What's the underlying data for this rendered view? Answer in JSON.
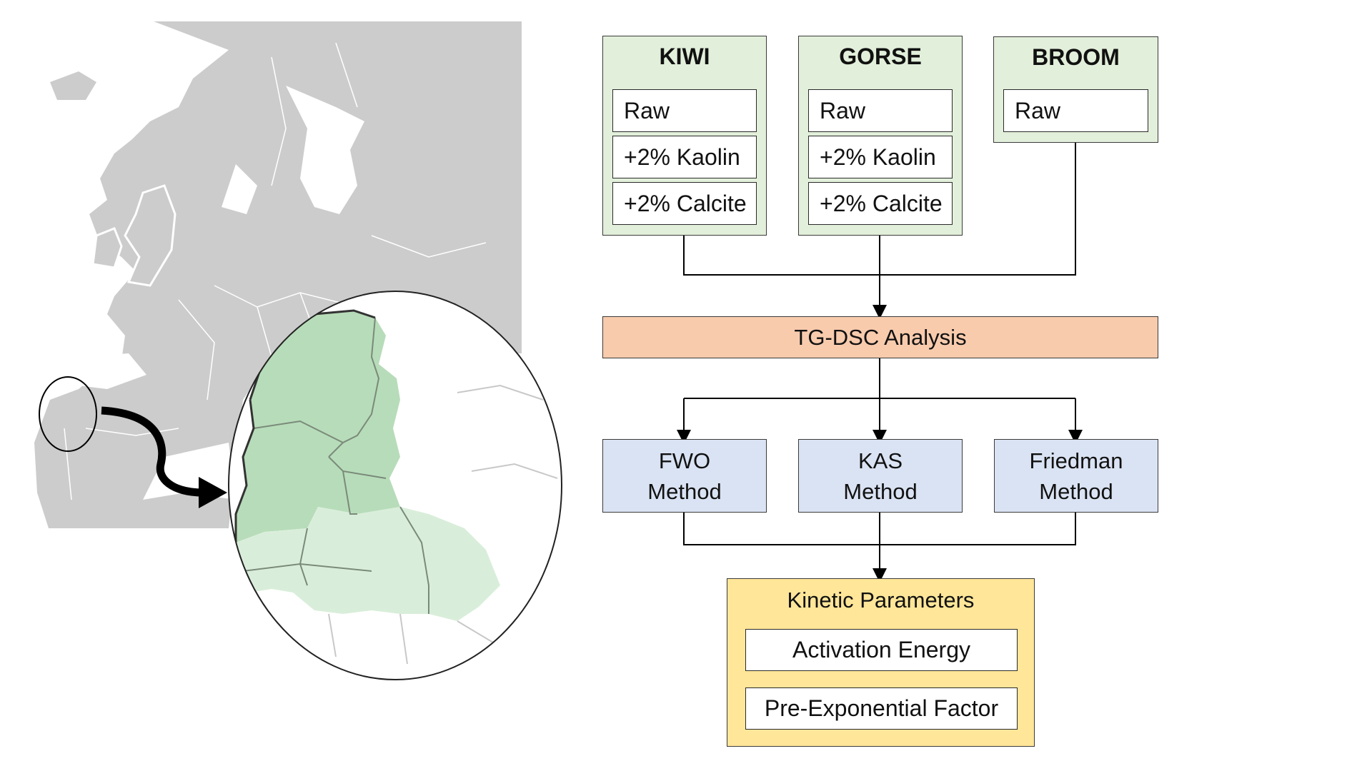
{
  "groups": [
    {
      "title": "KIWI",
      "items": [
        "Raw",
        "+2% Kaolin",
        "+2% Calcite"
      ]
    },
    {
      "title": "GORSE",
      "items": [
        "Raw",
        "+2% Kaolin",
        "+2% Calcite"
      ]
    },
    {
      "title": "BROOM",
      "items": [
        "Raw"
      ]
    }
  ],
  "analysis": "TG-DSC Analysis",
  "methods": [
    {
      "line1": "FWO",
      "line2": "Method"
    },
    {
      "line1": "KAS",
      "line2": "Method"
    },
    {
      "line1": "Friedman",
      "line2": "Method"
    }
  ],
  "kinetic": {
    "title": "Kinetic Parameters",
    "items": [
      "Activation Energy",
      "Pre-Exponential Factor"
    ]
  },
  "colors": {
    "group_fill": "#e2efda",
    "analysis_fill": "#f8cbad",
    "method_fill": "#dae3f3",
    "kinetic_fill": "#ffe699",
    "map_land": "#cccccc",
    "region_dark": "#b7dcb9",
    "region_light": "#d9eeda"
  }
}
